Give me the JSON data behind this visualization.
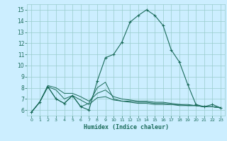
{
  "xlabel": "Humidex (Indice chaleur)",
  "bg_color": "#cceeff",
  "grid_color": "#99cccc",
  "line_color": "#1a6b5a",
  "xlim": [
    -0.5,
    23.5
  ],
  "ylim": [
    5.5,
    15.5
  ],
  "yticks": [
    6,
    7,
    8,
    9,
    10,
    11,
    12,
    13,
    14,
    15
  ],
  "xticks": [
    0,
    1,
    2,
    3,
    4,
    5,
    6,
    7,
    8,
    9,
    10,
    11,
    12,
    13,
    14,
    15,
    16,
    17,
    18,
    19,
    20,
    21,
    22,
    23
  ],
  "main_series": [
    5.8,
    6.7,
    8.1,
    7.0,
    6.6,
    7.3,
    6.3,
    6.0,
    8.6,
    10.7,
    11.0,
    12.1,
    13.9,
    14.5,
    15.0,
    14.5,
    13.6,
    11.4,
    10.3,
    8.3,
    6.5,
    6.3,
    6.5,
    6.2
  ],
  "line2_series": [
    5.8,
    6.7,
    8.1,
    7.0,
    6.6,
    7.3,
    6.3,
    6.6,
    8.0,
    8.5,
    7.0,
    6.8,
    6.7,
    6.6,
    6.6,
    6.5,
    6.5,
    6.5,
    6.4,
    6.4,
    6.4,
    6.3,
    6.3,
    6.2
  ],
  "line3_series": [
    5.8,
    6.7,
    8.1,
    7.8,
    7.0,
    7.3,
    6.9,
    6.5,
    7.1,
    7.2,
    6.9,
    6.8,
    6.8,
    6.7,
    6.7,
    6.6,
    6.6,
    6.5,
    6.5,
    6.4,
    6.4,
    6.3,
    6.3,
    6.2
  ],
  "line4_series": [
    5.8,
    6.7,
    8.2,
    8.0,
    7.5,
    7.5,
    7.2,
    6.8,
    7.5,
    7.8,
    7.2,
    7.0,
    6.9,
    6.8,
    6.8,
    6.7,
    6.7,
    6.6,
    6.5,
    6.5,
    6.4,
    6.3,
    6.3,
    6.2
  ]
}
